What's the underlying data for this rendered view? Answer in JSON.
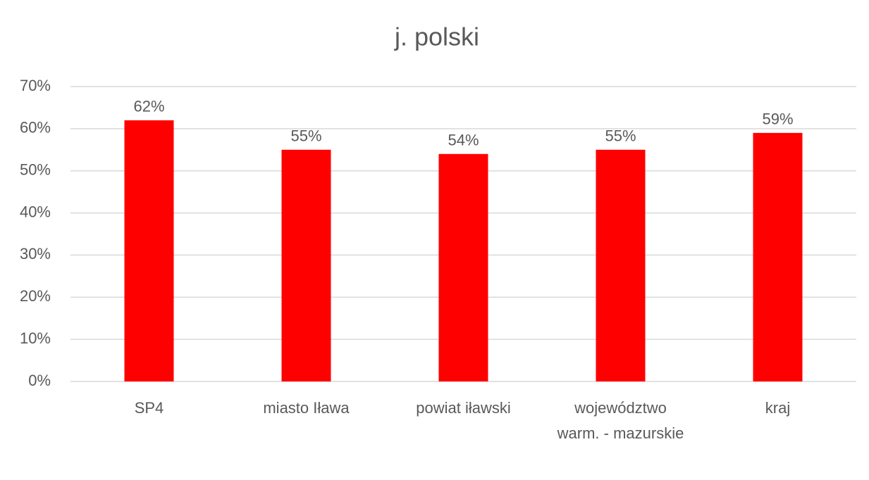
{
  "chart_data": {
    "type": "bar",
    "title": "j. polski",
    "categories": [
      "SP4",
      "miasto Iława",
      "powiat iławski",
      "województwo warm. - mazurskie",
      "kraj"
    ],
    "values": [
      62,
      55,
      54,
      55,
      59
    ],
    "value_labels": [
      "62%",
      "55%",
      "54%",
      "55%",
      "59%"
    ],
    "color": "#ff0000",
    "ylim": [
      0,
      70
    ],
    "yticks": [
      {
        "value": 0,
        "label": "0%"
      },
      {
        "value": 10,
        "label": "10%"
      },
      {
        "value": 20,
        "label": "20%"
      },
      {
        "value": 30,
        "label": "30%"
      },
      {
        "value": 40,
        "label": "40%"
      },
      {
        "value": 50,
        "label": "50%"
      },
      {
        "value": 60,
        "label": "60%"
      },
      {
        "value": 70,
        "label": "70%"
      }
    ],
    "grid": true
  }
}
